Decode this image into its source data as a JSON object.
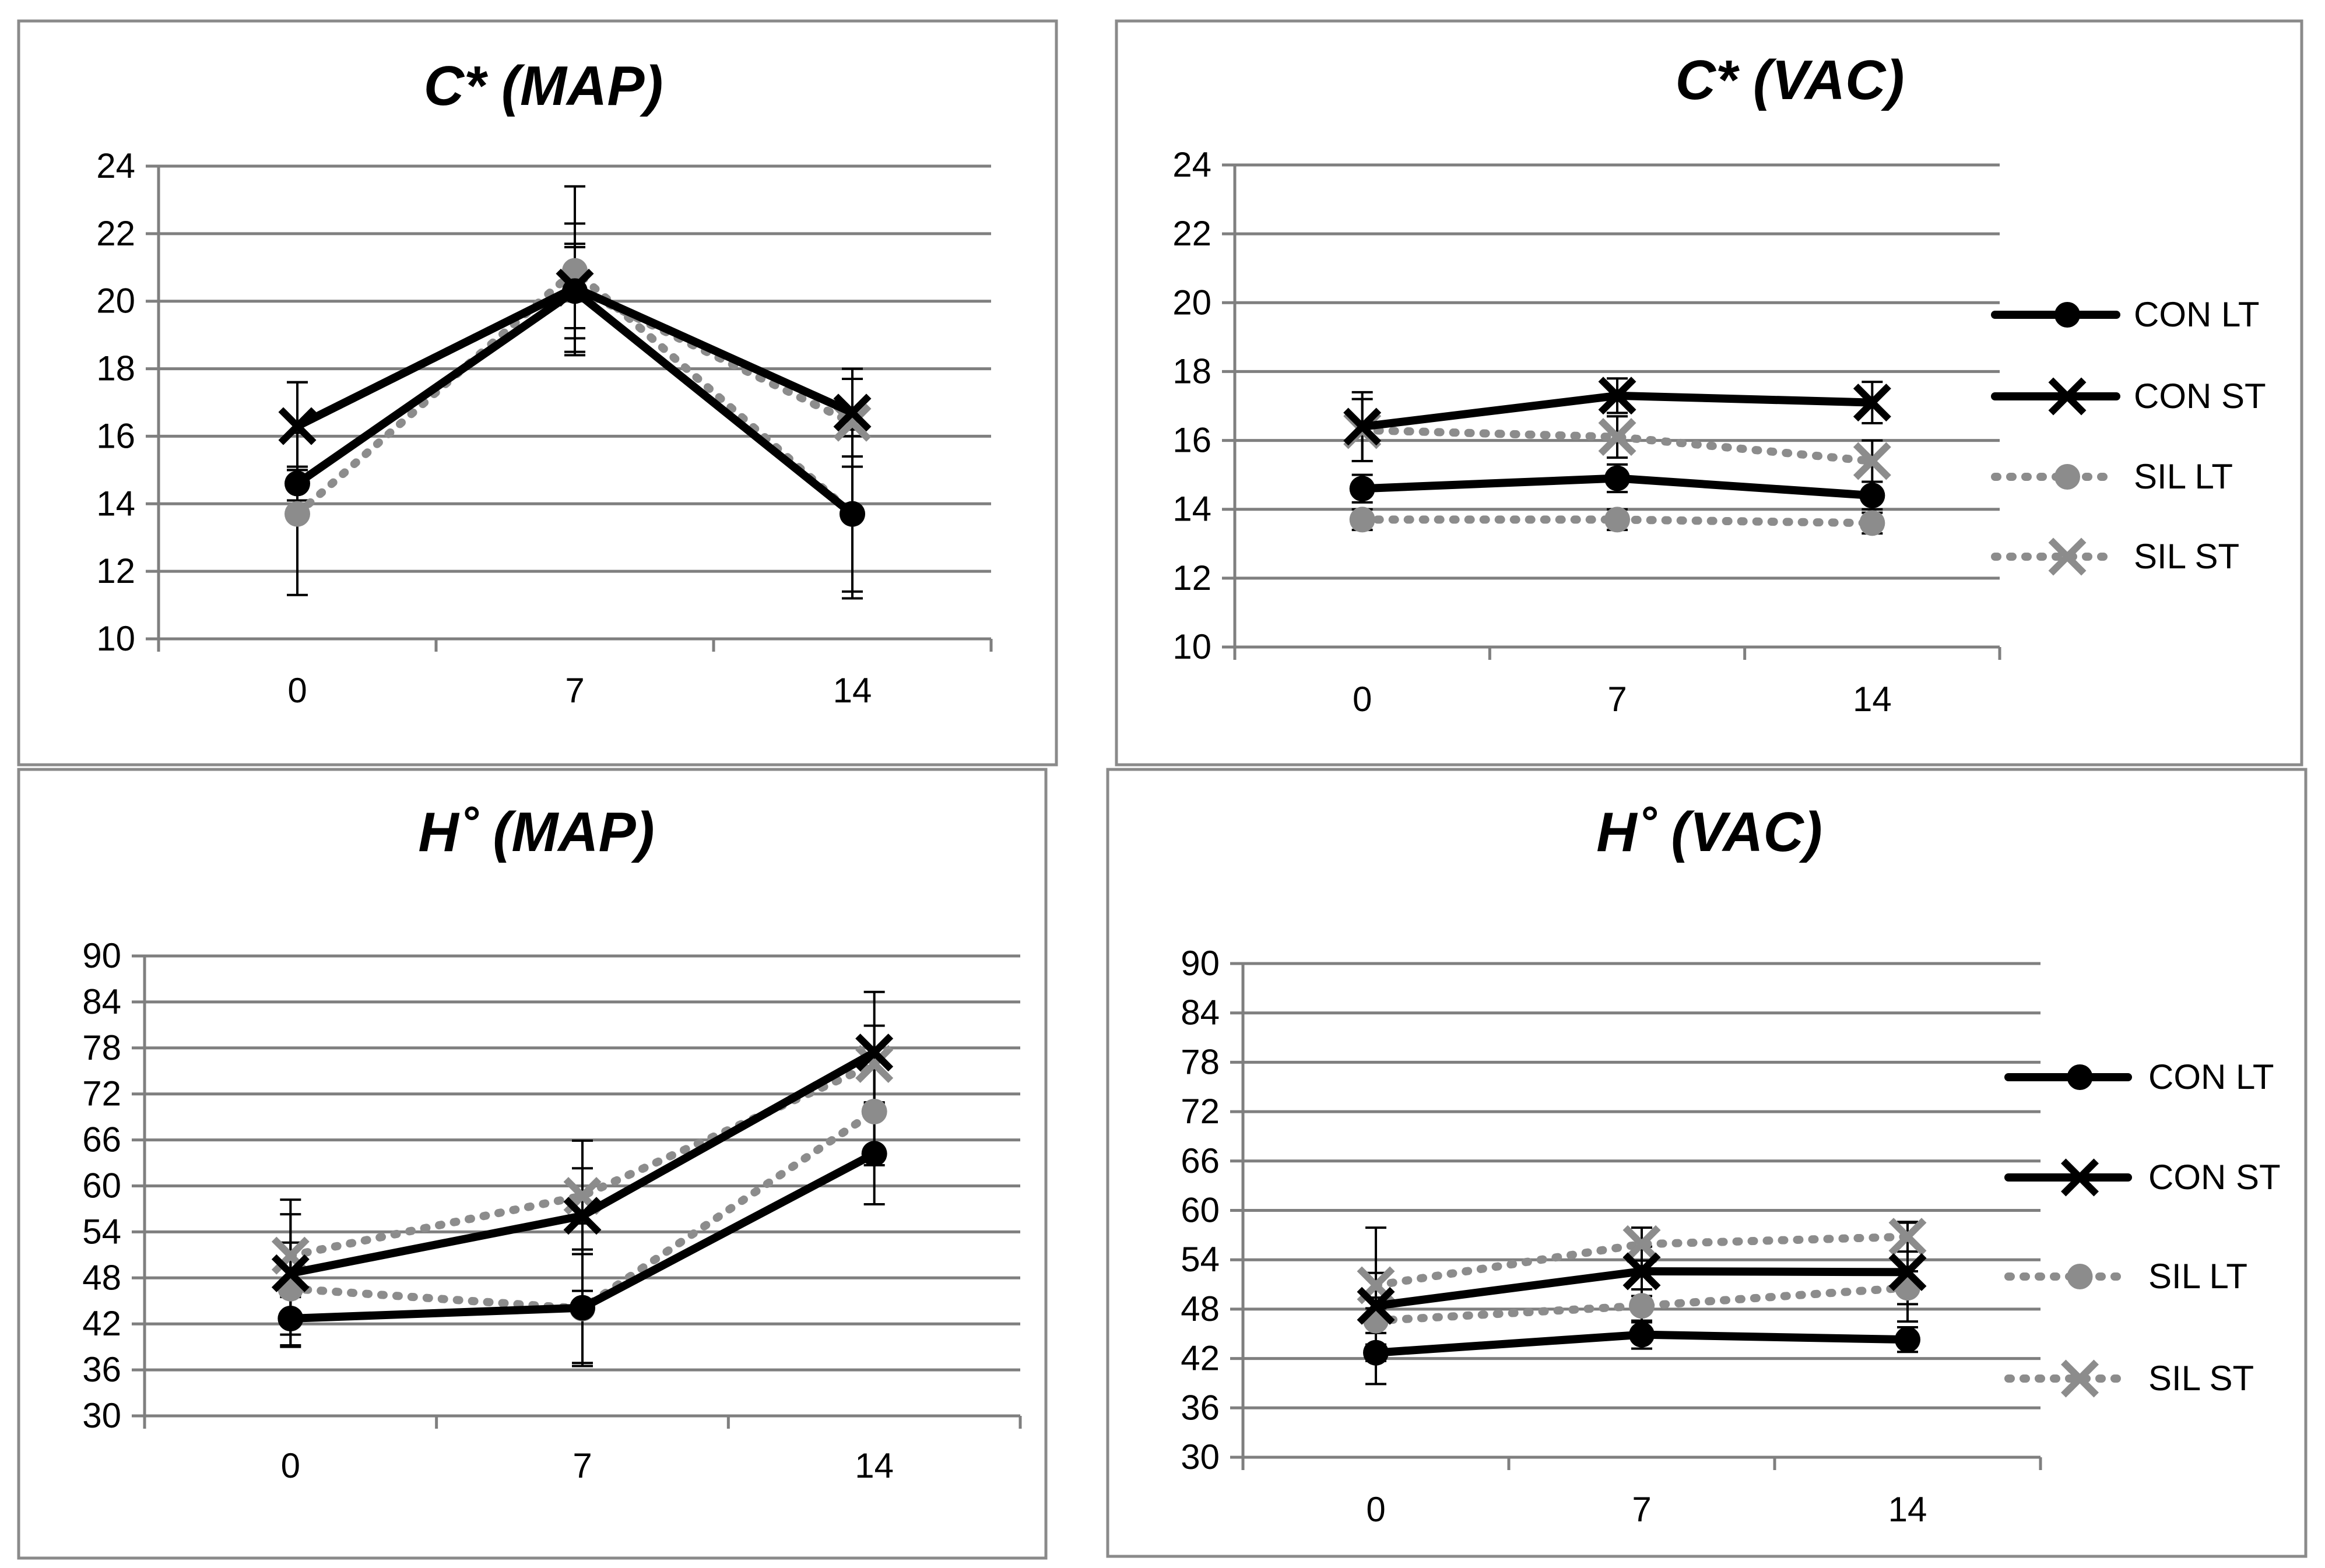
{
  "chart_data": [
    {
      "type": "line",
      "title": "C* (MAP)",
      "categories": [
        "0",
        "7",
        "14"
      ],
      "ylim": [
        10,
        24
      ],
      "yticks": [
        10,
        12,
        14,
        16,
        18,
        20,
        22,
        24
      ],
      "grid": true,
      "legend": "none",
      "series": [
        {
          "name": "CON LT",
          "values": [
            14.6,
            20.3,
            13.7
          ],
          "err": [
            0.5,
            1.4,
            2.3
          ]
        },
        {
          "name": "CON ST",
          "values": [
            16.3,
            20.4,
            16.7
          ],
          "err": [
            1.3,
            1.9,
            1.3
          ]
        },
        {
          "name": "SIL LT",
          "values": [
            13.7,
            20.9,
            13.7
          ],
          "err": [
            2.4,
            2.5,
            2.5
          ]
        },
        {
          "name": "SIL ST",
          "values": [
            16.3,
            20.4,
            16.4
          ],
          "err": [
            1.3,
            1.2,
            1.3
          ]
        }
      ]
    },
    {
      "type": "line",
      "title": "C* (VAC)",
      "categories": [
        "0",
        "7",
        "14"
      ],
      "ylim": [
        10,
        24
      ],
      "yticks": [
        10,
        12,
        14,
        16,
        18,
        20,
        22,
        24
      ],
      "grid": true,
      "legend": "right",
      "series": [
        {
          "name": "CON LT",
          "values": [
            14.6,
            14.9,
            14.4
          ],
          "err": [
            0.4,
            0.4,
            0.4
          ]
        },
        {
          "name": "CON ST",
          "values": [
            16.4,
            17.3,
            17.1
          ],
          "err": [
            1.0,
            0.5,
            0.6
          ]
        },
        {
          "name": "SIL LT",
          "values": [
            13.7,
            13.7,
            13.6
          ],
          "err": [
            0.3,
            0.3,
            0.3
          ]
        },
        {
          "name": "SIL ST",
          "values": [
            16.3,
            16.1,
            15.4
          ],
          "err": [
            0.9,
            0.6,
            0.6
          ]
        }
      ]
    },
    {
      "type": "line",
      "title": "H˚ (MAP)",
      "categories": [
        "0",
        "7",
        "14"
      ],
      "ylim": [
        30,
        90
      ],
      "yticks": [
        30,
        36,
        42,
        48,
        54,
        60,
        66,
        72,
        78,
        84,
        90
      ],
      "grid": true,
      "legend": "none",
      "series": [
        {
          "name": "CON LT",
          "values": [
            42.7,
            44.1,
            64.2
          ],
          "err": [
            3.5,
            7.6,
            6.6
          ]
        },
        {
          "name": "CON ST",
          "values": [
            48.6,
            56.1,
            77.4
          ],
          "err": [
            9.6,
            9.8,
            7.9
          ]
        },
        {
          "name": "SIL LT",
          "values": [
            46.6,
            44.0,
            69.7
          ],
          "err": [
            6.0,
            7.1,
            7.0
          ]
        },
        {
          "name": "SIL ST",
          "values": [
            50.9,
            58.7,
            75.9
          ],
          "err": [
            5.4,
            3.6,
            5.0
          ]
        }
      ]
    },
    {
      "type": "line",
      "title": "H˚ (VAC)",
      "categories": [
        "0",
        "7",
        "14"
      ],
      "ylim": [
        30,
        90
      ],
      "yticks": [
        30,
        36,
        42,
        48,
        54,
        60,
        66,
        72,
        78,
        84,
        90
      ],
      "grid": true,
      "legend": "right",
      "series": [
        {
          "name": "CON LT",
          "values": [
            42.7,
            44.9,
            44.3
          ],
          "err": [
            1.0,
            1.7,
            1.5
          ]
        },
        {
          "name": "CON ST",
          "values": [
            48.4,
            52.6,
            52.5
          ],
          "err": [
            9.5,
            3.0,
            6.0
          ]
        },
        {
          "name": "SIL LT",
          "values": [
            46.6,
            48.4,
            50.6
          ],
          "err": [
            1.5,
            2.0,
            2.0
          ]
        },
        {
          "name": "SIL ST",
          "values": [
            50.9,
            55.9,
            56.8
          ],
          "err": [
            1.5,
            2.0,
            1.8
          ]
        }
      ]
    }
  ],
  "style": {
    "line_color_con": "#000000",
    "line_color_sil": "#8c8c8c",
    "gridline_color": "#7f7f7f"
  },
  "markers": {
    "CON LT": "filled-circle",
    "CON ST": "x-cross",
    "SIL LT": "filled-circle",
    "SIL ST": "x-cross"
  }
}
